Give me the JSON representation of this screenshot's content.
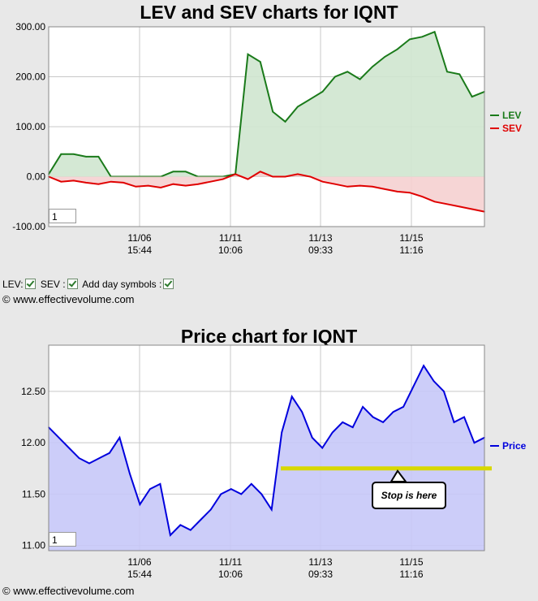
{
  "chart_data": [
    {
      "type": "area",
      "title": "LEV and SEV charts for IQNT",
      "ylim": [
        -100,
        300
      ],
      "y_ticks": [
        "300.00",
        "200.00",
        "100.00",
        "0.00",
        "-100.00"
      ],
      "x_ticks": [
        {
          "date": "11/06",
          "time": "15:44"
        },
        {
          "date": "11/11",
          "time": "10:06"
        },
        {
          "date": "11/13",
          "time": "09:33"
        },
        {
          "date": "11/15",
          "time": "11:16"
        }
      ],
      "legend_placement": "right",
      "grid": true,
      "series": [
        {
          "name": "LEV",
          "color": "#1a7a1a",
          "values": [
            5,
            45,
            45,
            40,
            40,
            0,
            0,
            0,
            0,
            0,
            10,
            10,
            0,
            0,
            0,
            5,
            245,
            230,
            130,
            110,
            140,
            155,
            170,
            200,
            210,
            195,
            220,
            240,
            255,
            275,
            280,
            290,
            210,
            205,
            160,
            170
          ]
        },
        {
          "name": "SEV",
          "color": "#e00000",
          "values": [
            0,
            -10,
            -8,
            -12,
            -15,
            -10,
            -12,
            -20,
            -18,
            -22,
            -15,
            -18,
            -15,
            -10,
            -5,
            5,
            -5,
            10,
            0,
            0,
            5,
            0,
            -10,
            -15,
            -20,
            -18,
            -20,
            -25,
            -30,
            -32,
            -40,
            -50,
            -55,
            -60,
            -65,
            -70
          ]
        }
      ]
    },
    {
      "type": "area",
      "title": "Price chart for IQNT",
      "ylim": [
        10.95,
        12.95
      ],
      "y_ticks": [
        "12.50",
        "12.00",
        "11.50",
        "11.00"
      ],
      "x_ticks": [
        {
          "date": "11/06",
          "time": "15:44"
        },
        {
          "date": "11/11",
          "time": "10:06"
        },
        {
          "date": "11/13",
          "time": "09:33"
        },
        {
          "date": "11/15",
          "time": "11:16"
        }
      ],
      "legend_placement": "right",
      "grid": true,
      "series": [
        {
          "name": "Price",
          "color": "#0000dd",
          "values": [
            12.15,
            12.05,
            11.95,
            11.85,
            11.8,
            11.85,
            11.9,
            12.05,
            11.7,
            11.4,
            11.55,
            11.6,
            11.1,
            11.2,
            11.15,
            11.25,
            11.35,
            11.5,
            11.55,
            11.5,
            11.6,
            11.5,
            11.35,
            12.1,
            12.45,
            12.3,
            12.05,
            11.95,
            12.1,
            12.2,
            12.15,
            12.35,
            12.25,
            12.2,
            12.3,
            12.35,
            12.55,
            12.75,
            12.6,
            12.5,
            12.2,
            12.25,
            12.0,
            12.05
          ]
        }
      ],
      "annotation": "Stop is here",
      "stop_level": 11.75
    }
  ],
  "controls": {
    "lev_label": "LEV:",
    "sev_label": "SEV :",
    "day_symbols_label": "Add day symbols :"
  },
  "zoom_value": "1",
  "copyright": "© www.effectivevolume.com",
  "colors": {
    "lev_fill": "#cfe5cf",
    "sev_fill": "#f5d0d0",
    "price_fill": "#c6c8f8",
    "stop_line": "#d8d800"
  }
}
